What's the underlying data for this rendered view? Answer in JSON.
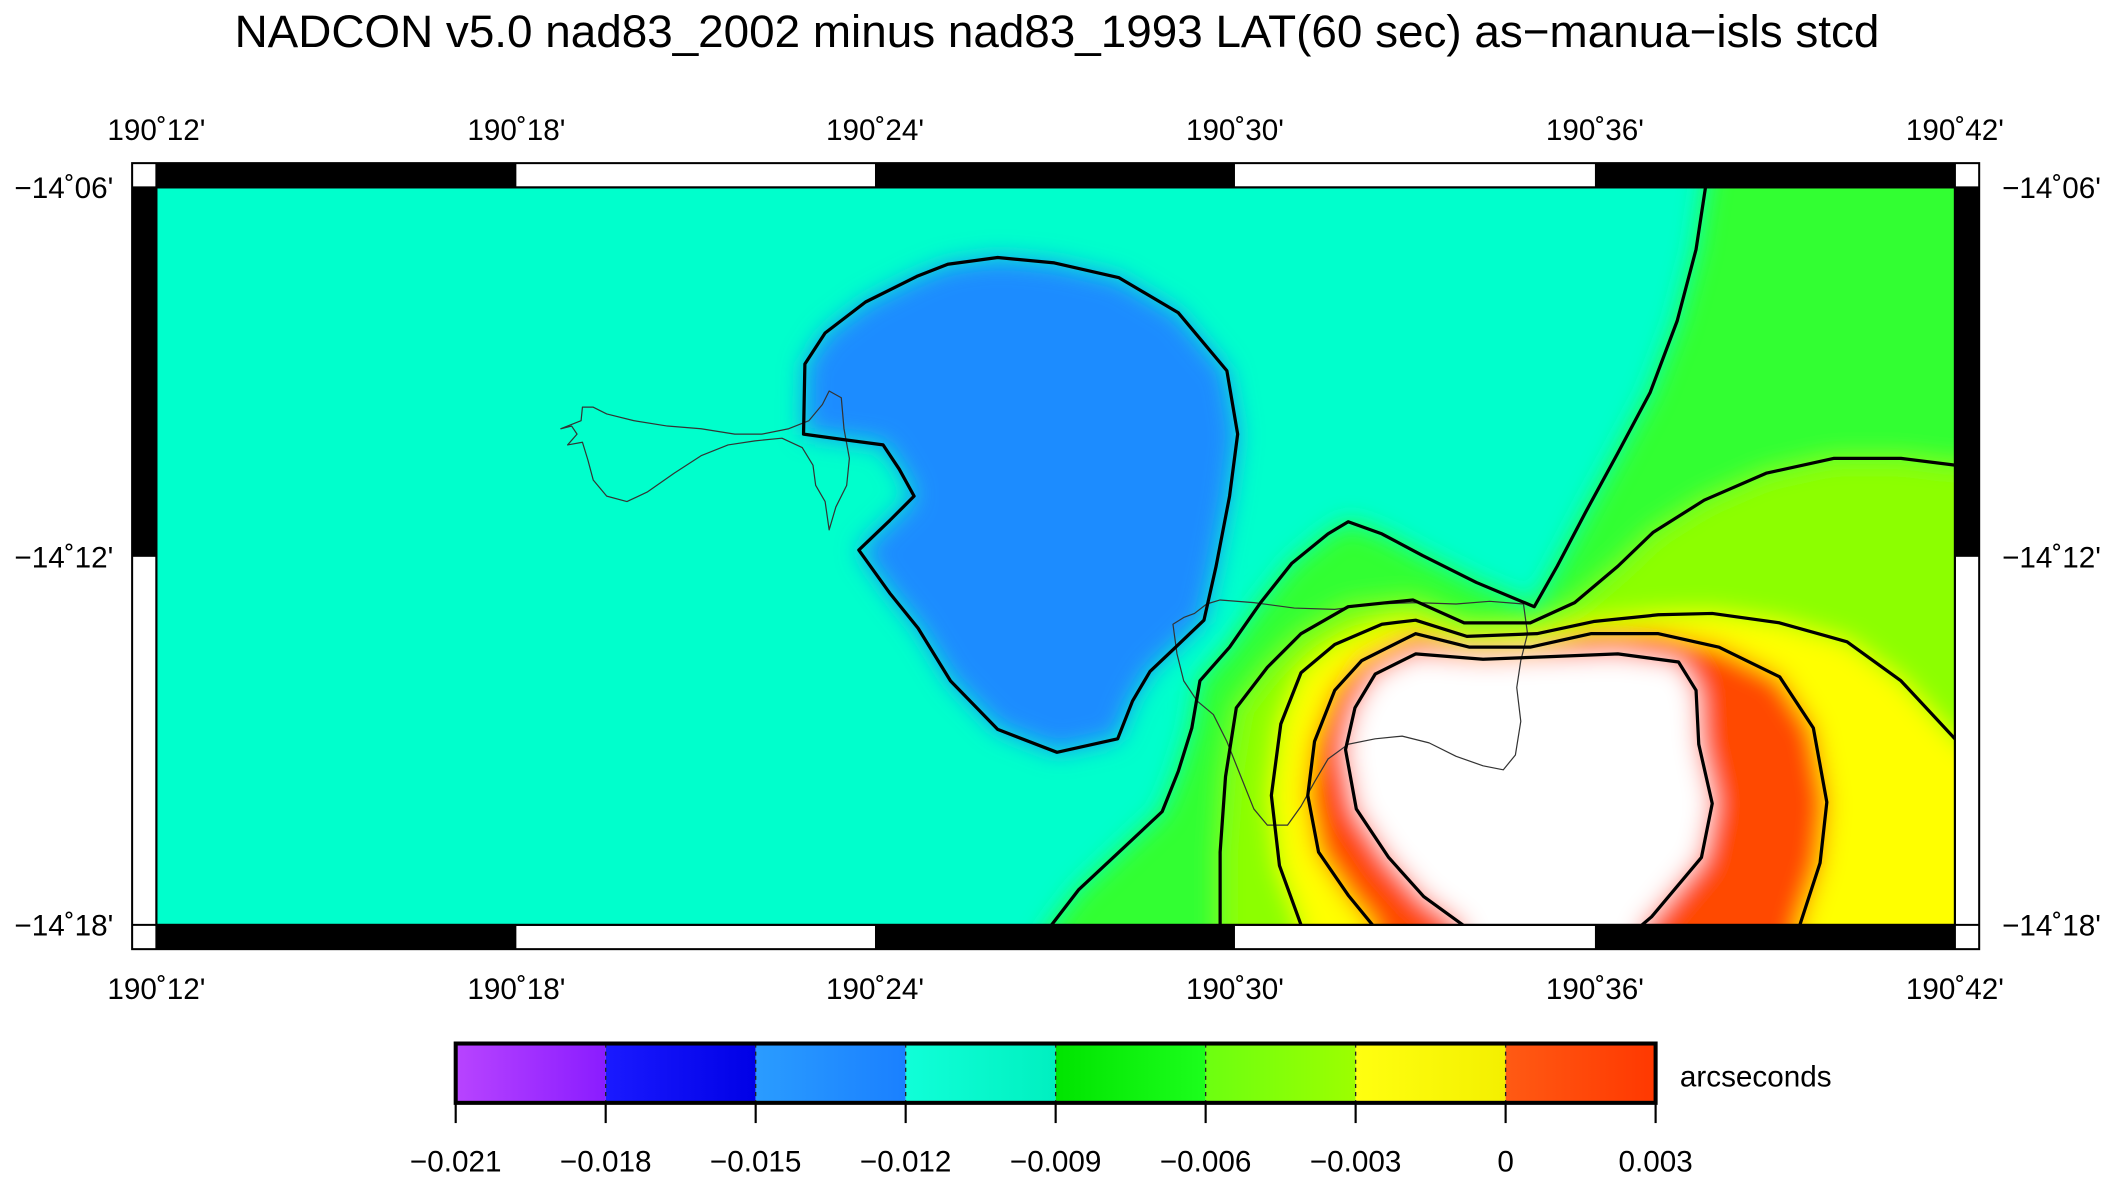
{
  "title": "NADCON v5.0 nad83_2002 minus nad83_1993 LAT(60 sec) as−manua−isls stcd",
  "map": {
    "lon_labels": [
      "190˚12'",
      "190˚18'",
      "190˚24'",
      "190˚30'",
      "190˚36'",
      "190˚42'"
    ],
    "lat_labels": [
      "−14˚06'",
      "−14˚12'",
      "−14˚18'"
    ],
    "colors": {
      "background": "#00ffcc",
      "blue": "#1e8cff",
      "green": "#30ff30",
      "chartreuse": "#8cff00",
      "yellow": "#ffff00",
      "orange": "#ff4a00",
      "peak": "#ffffff",
      "contour": "#000000",
      "coastline": "#333333"
    }
  },
  "colorbar": {
    "unit": "arcseconds",
    "ticks": [
      "−0.021",
      "−0.018",
      "−0.015",
      "−0.012",
      "−0.009",
      "−0.006",
      "−0.003",
      "0",
      "0.003"
    ],
    "colors": [
      [
        "#b844ff",
        "#8a1cff"
      ],
      [
        "#1a1aff",
        "#0000e6"
      ],
      [
        "#2a9cff",
        "#1a80ff"
      ],
      [
        "#10ffd8",
        "#00f0c0"
      ],
      [
        "#00e400",
        "#1cff1c"
      ],
      [
        "#6cff10",
        "#9cff00"
      ],
      [
        "#ffff10",
        "#f4f000"
      ],
      [
        "#ff5a14",
        "#ff3800"
      ]
    ]
  }
}
